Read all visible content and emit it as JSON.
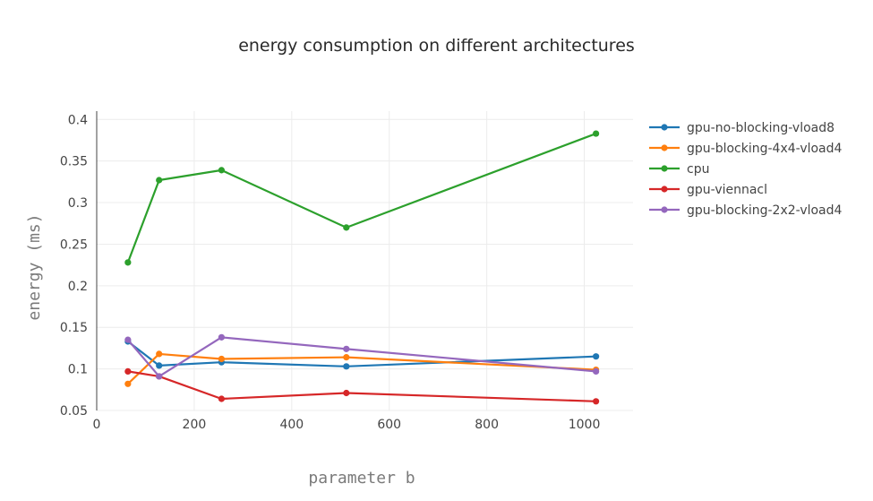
{
  "chart_data": {
    "type": "line",
    "title": "energy consumption on different architectures",
    "xlabel": "parameter b",
    "ylabel": "energy (ms)",
    "xlim": [
      0,
      1100
    ],
    "ylim": [
      0.05,
      0.41
    ],
    "xticks": [
      0,
      200,
      400,
      600,
      800,
      1000
    ],
    "yticks": [
      0.05,
      0.1,
      0.15,
      0.2,
      0.25,
      0.3,
      0.35,
      0.4
    ],
    "ytick_labels": [
      "0.05",
      "0.1",
      "0.15",
      "0.2",
      "0.25",
      "0.3",
      "0.35",
      "0.4"
    ],
    "grid": true,
    "legend_position": "right",
    "x": [
      64,
      128,
      256,
      512,
      1024
    ],
    "series": [
      {
        "name": "gpu-no-blocking-vload8",
        "color": "#1f77b4",
        "values": [
          0.133,
          0.104,
          0.108,
          0.103,
          0.115
        ]
      },
      {
        "name": "gpu-blocking-4x4-vload4",
        "color": "#ff7f0e",
        "values": [
          0.082,
          0.118,
          0.112,
          0.114,
          0.099
        ]
      },
      {
        "name": "cpu",
        "color": "#2ca02c",
        "values": [
          0.228,
          0.327,
          0.339,
          0.27,
          0.383
        ]
      },
      {
        "name": "gpu-viennacl",
        "color": "#d62728",
        "values": [
          0.097,
          0.091,
          0.064,
          0.071,
          0.061
        ]
      },
      {
        "name": "gpu-blocking-2x2-vload4",
        "color": "#9467bd",
        "values": [
          0.135,
          0.091,
          0.138,
          0.124,
          0.097
        ]
      }
    ]
  }
}
